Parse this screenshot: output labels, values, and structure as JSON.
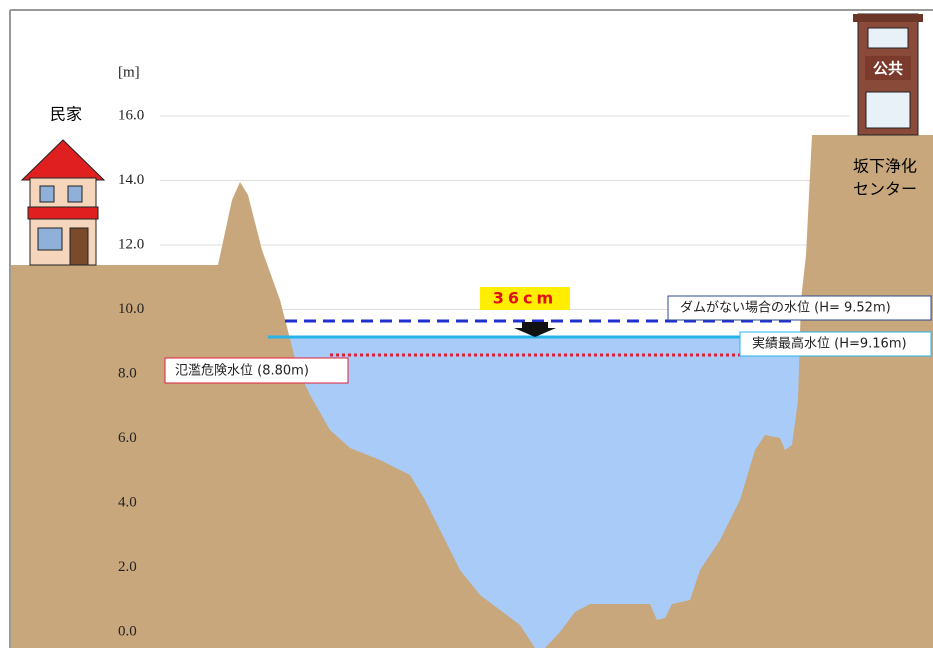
{
  "axis": {
    "unit": "[m]",
    "ticks": [
      "16.0",
      "14.0",
      "12.0",
      "10.0",
      "8.0",
      "6.0",
      "4.0",
      "2.0",
      "0.0"
    ]
  },
  "labels": {
    "left_house": "民家",
    "public_building": "公共",
    "right_facility": [
      "坂下浄化",
      "センター"
    ],
    "difference": "36cm",
    "no_dam_level": "ダムがない場合の水位 (H= 9.52m)",
    "record_level": "実績最高水位 (H=9.16m)",
    "flood_danger_level": "氾濫危険水位 (8.80m)"
  }
}
